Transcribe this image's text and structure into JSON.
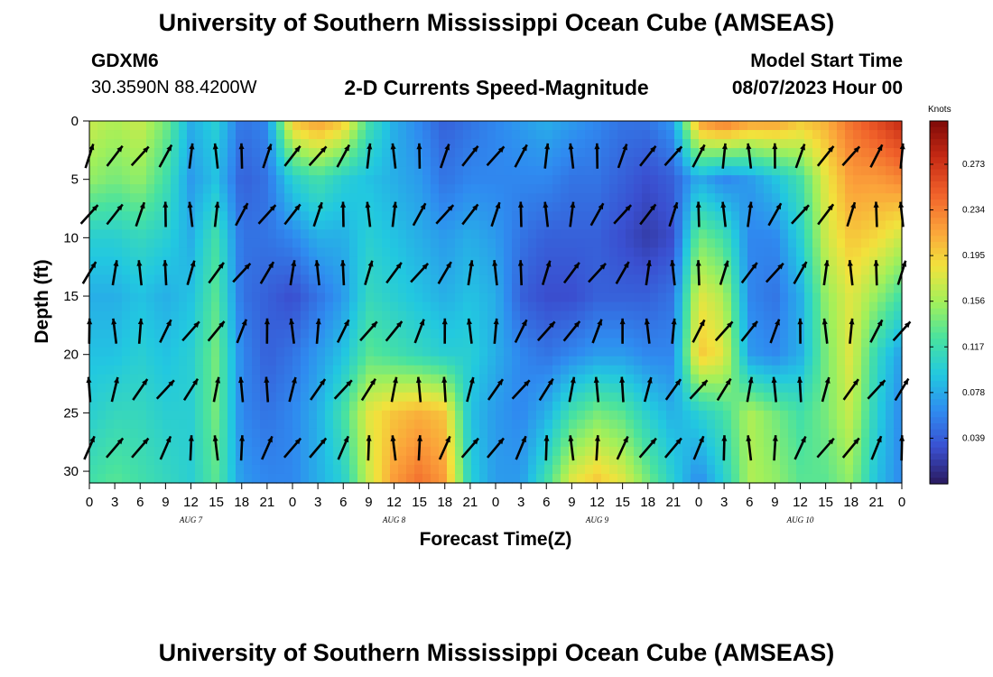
{
  "header": {
    "title": "University of Southern Mississippi Ocean Cube (AMSEAS)",
    "station": "GDXM6",
    "coordinates": "30.3590N  88.4200W",
    "chart_title": "2-D Currents Speed-Magnitude",
    "model_start_label": "Model Start Time",
    "model_start_value": "08/07/2023 Hour 00"
  },
  "footer": {
    "title": "University of Southern Mississippi Ocean Cube (AMSEAS)"
  },
  "chart_data": {
    "type": "heatmap",
    "title": "2-D Currents Speed-Magnitude",
    "xlabel": "Forecast Time(Z)",
    "ylabel": "Depth (ft)",
    "x_tick_labels": [
      "0",
      "3",
      "6",
      "9",
      "12",
      "15",
      "18",
      "21",
      "0",
      "3",
      "6",
      "9",
      "12",
      "15",
      "18",
      "21",
      "0",
      "3",
      "6",
      "9",
      "12",
      "15",
      "18",
      "21",
      "0",
      "3",
      "6",
      "9",
      "12",
      "15",
      "18",
      "21",
      "0"
    ],
    "x_range_hours": [
      0,
      96
    ],
    "date_labels": [
      {
        "label": "AUG 7",
        "hour": 12
      },
      {
        "label": "AUG 8",
        "hour": 36
      },
      {
        "label": "AUG 9",
        "hour": 60
      },
      {
        "label": "AUG 10",
        "hour": 84
      }
    ],
    "y_ticks": [
      0,
      5,
      10,
      15,
      20,
      25,
      30
    ],
    "y_range": [
      0,
      31
    ],
    "colorbar": {
      "label": "Knots",
      "ticks": [
        0.039,
        0.078,
        0.117,
        0.156,
        0.195,
        0.234,
        0.273
      ],
      "range": [
        0.0,
        0.31
      ],
      "colors": [
        "#2a1a5e",
        "#3a4fd0",
        "#2f8bf0",
        "#22c8e0",
        "#48e2a0",
        "#a2f05a",
        "#f2e23c",
        "#fba13a",
        "#f0602a",
        "#c62a14",
        "#7e0a08"
      ]
    },
    "arrow_depths_ft": [
      3,
      8,
      13,
      18,
      23,
      28
    ],
    "arrow_hours": [
      0,
      3,
      6,
      9,
      12,
      15,
      18,
      21,
      24,
      27,
      30,
      33,
      36,
      39,
      42,
      45,
      48,
      51,
      54,
      57,
      60,
      63,
      66,
      69,
      72,
      75,
      78,
      81,
      84,
      87,
      90,
      93,
      96
    ],
    "speed_columns": [
      {
        "hour": 0,
        "speeds": [
          0.17,
          0.15,
          0.1,
          0.08,
          0.09,
          0.1,
          0.12
        ]
      },
      {
        "hour": 3,
        "speeds": [
          0.16,
          0.14,
          0.1,
          0.08,
          0.09,
          0.11,
          0.13
        ]
      },
      {
        "hour": 6,
        "speeds": [
          0.17,
          0.15,
          0.11,
          0.09,
          0.1,
          0.11,
          0.12
        ]
      },
      {
        "hour": 9,
        "speeds": [
          0.14,
          0.12,
          0.1,
          0.08,
          0.09,
          0.1,
          0.11
        ]
      },
      {
        "hour": 12,
        "speeds": [
          0.08,
          0.07,
          0.08,
          0.09,
          0.1,
          0.1,
          0.1
        ]
      },
      {
        "hour": 15,
        "speeds": [
          0.1,
          0.09,
          0.12,
          0.13,
          0.14,
          0.14,
          0.13
        ]
      },
      {
        "hour": 18,
        "speeds": [
          0.05,
          0.04,
          0.05,
          0.05,
          0.06,
          0.06,
          0.07
        ]
      },
      {
        "hour": 21,
        "speeds": [
          0.06,
          0.05,
          0.05,
          0.04,
          0.04,
          0.05,
          0.06
        ]
      },
      {
        "hour": 24,
        "speeds": [
          0.2,
          0.1,
          0.06,
          0.03,
          0.05,
          0.06,
          0.06
        ]
      },
      {
        "hour": 27,
        "speeds": [
          0.22,
          0.12,
          0.08,
          0.05,
          0.07,
          0.08,
          0.08
        ]
      },
      {
        "hour": 30,
        "speeds": [
          0.2,
          0.1,
          0.08,
          0.07,
          0.09,
          0.12,
          0.1
        ]
      },
      {
        "hour": 33,
        "speeds": [
          0.12,
          0.09,
          0.1,
          0.11,
          0.13,
          0.18,
          0.17
        ]
      },
      {
        "hour": 36,
        "speeds": [
          0.08,
          0.08,
          0.09,
          0.1,
          0.12,
          0.2,
          0.22
        ]
      },
      {
        "hour": 39,
        "speeds": [
          0.06,
          0.07,
          0.08,
          0.09,
          0.11,
          0.21,
          0.24
        ]
      },
      {
        "hour": 42,
        "speeds": [
          0.04,
          0.05,
          0.07,
          0.08,
          0.1,
          0.2,
          0.22
        ]
      },
      {
        "hour": 45,
        "speeds": [
          0.05,
          0.06,
          0.08,
          0.09,
          0.1,
          0.09,
          0.1
        ]
      },
      {
        "hour": 48,
        "speeds": [
          0.06,
          0.06,
          0.07,
          0.08,
          0.08,
          0.07,
          0.07
        ]
      },
      {
        "hour": 51,
        "speeds": [
          0.07,
          0.06,
          0.05,
          0.04,
          0.06,
          0.06,
          0.07
        ]
      },
      {
        "hour": 54,
        "speeds": [
          0.08,
          0.06,
          0.04,
          0.03,
          0.05,
          0.08,
          0.12
        ]
      },
      {
        "hour": 57,
        "speeds": [
          0.07,
          0.05,
          0.04,
          0.03,
          0.06,
          0.12,
          0.18
        ]
      },
      {
        "hour": 60,
        "speeds": [
          0.06,
          0.05,
          0.04,
          0.04,
          0.07,
          0.14,
          0.2
        ]
      },
      {
        "hour": 63,
        "speeds": [
          0.05,
          0.04,
          0.03,
          0.04,
          0.07,
          0.13,
          0.18
        ]
      },
      {
        "hour": 66,
        "speeds": [
          0.05,
          0.03,
          0.02,
          0.04,
          0.06,
          0.1,
          0.14
        ]
      },
      {
        "hour": 69,
        "speeds": [
          0.07,
          0.04,
          0.03,
          0.05,
          0.06,
          0.08,
          0.1
        ]
      },
      {
        "hour": 72,
        "speeds": [
          0.22,
          0.08,
          0.14,
          0.18,
          0.2,
          0.1,
          0.06
        ]
      },
      {
        "hour": 75,
        "speeds": [
          0.24,
          0.06,
          0.12,
          0.16,
          0.18,
          0.12,
          0.1
        ]
      },
      {
        "hour": 78,
        "speeds": [
          0.22,
          0.07,
          0.06,
          0.06,
          0.07,
          0.16,
          0.16
        ]
      },
      {
        "hour": 81,
        "speeds": [
          0.22,
          0.09,
          0.06,
          0.05,
          0.06,
          0.14,
          0.15
        ]
      },
      {
        "hour": 84,
        "speeds": [
          0.2,
          0.12,
          0.1,
          0.08,
          0.08,
          0.12,
          0.13
        ]
      },
      {
        "hour": 87,
        "speeds": [
          0.21,
          0.18,
          0.17,
          0.15,
          0.14,
          0.14,
          0.13
        ]
      },
      {
        "hour": 90,
        "speeds": [
          0.24,
          0.22,
          0.2,
          0.18,
          0.18,
          0.17,
          0.15
        ]
      },
      {
        "hour": 93,
        "speeds": [
          0.26,
          0.22,
          0.19,
          0.15,
          0.11,
          0.1,
          0.09
        ]
      },
      {
        "hour": 96,
        "speeds": [
          0.28,
          0.23,
          0.17,
          0.12,
          0.07,
          0.06,
          0.06
        ]
      }
    ],
    "speed_depths_ft": [
      0,
      5,
      10,
      15,
      20,
      25,
      31
    ]
  }
}
